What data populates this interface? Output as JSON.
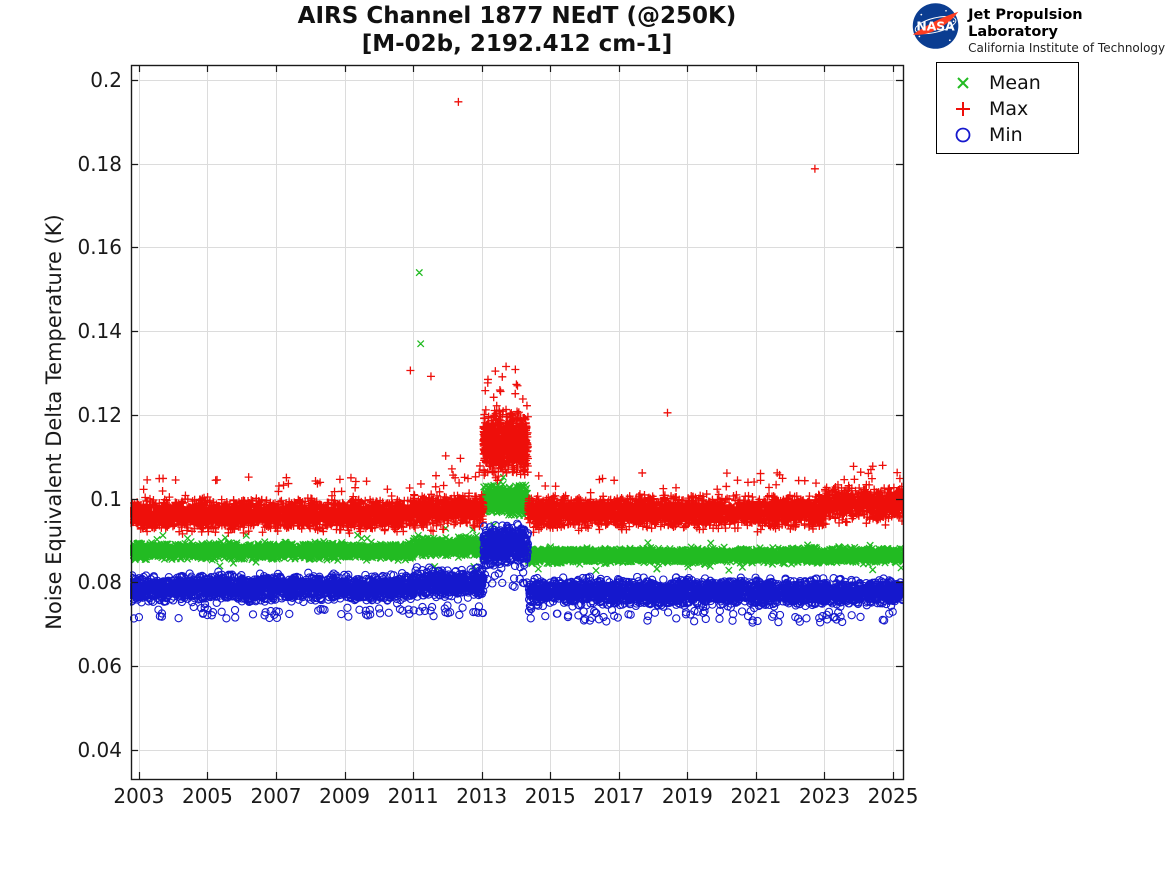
{
  "page": {
    "background": "#ffffff"
  },
  "header": {
    "logo": {
      "org": "NASA",
      "name": "Jet Propulsion Laboratory",
      "sub": "California Institute of Technology",
      "circle_color": "#0b3d91",
      "swoosh_color": "#fc3d21"
    }
  },
  "chart_data": {
    "type": "scatter",
    "title": "AIRS Channel 1877 NEdT (@250K)",
    "subtitle": "[M-02b, 2192.412 cm-1]",
    "xlabel": "",
    "ylabel": "Noise Equivalent Delta Temperature (K)",
    "xlim": [
      2002.77,
      2025.29
    ],
    "ylim": [
      0.033,
      0.2036
    ],
    "xticks": [
      2003,
      2005,
      2007,
      2009,
      2011,
      2013,
      2015,
      2017,
      2019,
      2021,
      2023,
      2025
    ],
    "xtick_labels": [
      "2003",
      "2005",
      "2007",
      "2009",
      "2011",
      "2013",
      "2015",
      "2017",
      "2019",
      "2021",
      "2023",
      "2025"
    ],
    "yticks": [
      0.04,
      0.06,
      0.08,
      0.1,
      0.12,
      0.14,
      0.16,
      0.18,
      0.2
    ],
    "ytick_labels": [
      "0.04",
      "0.06",
      "0.08",
      "0.1",
      "0.12",
      "0.14",
      "0.16",
      "0.18",
      "0.2"
    ],
    "grid": true,
    "grid_color": "#dcdcdc",
    "axis_color": "#1a1a1a",
    "legend": {
      "position": "outside-top-right",
      "entries": [
        {
          "label": "Mean",
          "marker": "x",
          "color": "#22bb22"
        },
        {
          "label": "Max",
          "marker": "+",
          "color": "#ee0f0a"
        },
        {
          "label": "Min",
          "marker": "o",
          "color": "#1518cd"
        }
      ]
    },
    "series": [
      {
        "name": "Mean",
        "marker": "x",
        "color": "#22bb22",
        "bands": [
          [
            2002.77,
            2011.0,
            0.0875,
            0.0013,
            300
          ],
          [
            2011.0,
            2013.05,
            0.0884,
            0.0016,
            300
          ],
          [
            2013.05,
            2014.35,
            0.0997,
            0.0024,
            450
          ],
          [
            2014.35,
            2025.29,
            0.0864,
            0.0012,
            300
          ]
        ],
        "outliers": [
          [
            2011.18,
            0.154
          ],
          [
            2011.22,
            0.137
          ],
          [
            2011.15,
            0.0912
          ],
          [
            2011.3,
            0.0905
          ]
        ]
      },
      {
        "name": "Max",
        "marker": "+",
        "color": "#ee0f0a",
        "bands": [
          [
            2002.77,
            2011.0,
            0.0961,
            0.0026,
            300
          ],
          [
            2011.0,
            2013.05,
            0.0972,
            0.0028,
            300
          ],
          [
            2013.05,
            2014.35,
            0.1132,
            0.0052,
            650
          ],
          [
            2014.35,
            2023.0,
            0.0968,
            0.0026,
            300
          ],
          [
            2023.0,
            2025.29,
            0.0988,
            0.0028,
            300
          ]
        ],
        "outliers": [
          [
            2012.32,
            0.1948
          ],
          [
            2022.72,
            0.1788
          ],
          [
            2010.92,
            0.1306
          ],
          [
            2011.52,
            0.1292
          ],
          [
            2018.42,
            0.1205
          ],
          [
            2011.95,
            0.1102
          ],
          [
            2012.38,
            0.1096
          ],
          [
            2012.6,
            0.1048
          ],
          [
            2012.82,
            0.1052
          ],
          [
            2012.95,
            0.1078
          ],
          [
            2013.12,
            0.1212
          ],
          [
            2013.35,
            0.1242
          ],
          [
            2013.55,
            0.1256
          ],
          [
            2014.2,
            0.1238
          ],
          [
            2014.32,
            0.1222
          ],
          [
            2025.12,
            0.1062
          ],
          [
            2025.2,
            0.1048
          ]
        ]
      },
      {
        "name": "Min",
        "marker": "o",
        "color": "#1518cd",
        "bands": [
          [
            2002.77,
            2011.0,
            0.0786,
            0.0022,
            230
          ],
          [
            2011.0,
            2013.05,
            0.0798,
            0.0024,
            230
          ],
          [
            2013.05,
            2014.35,
            0.0888,
            0.0032,
            420
          ],
          [
            2014.35,
            2025.29,
            0.0776,
            0.0022,
            230
          ]
        ],
        "outliers": [
          [
            2023.4,
            0.0728
          ],
          [
            2008.3,
            0.0736
          ],
          [
            2004.6,
            0.0741
          ],
          [
            2016.8,
            0.0734
          ],
          [
            2019.5,
            0.0731
          ],
          [
            2013.0,
            0.0832
          ]
        ]
      }
    ]
  }
}
